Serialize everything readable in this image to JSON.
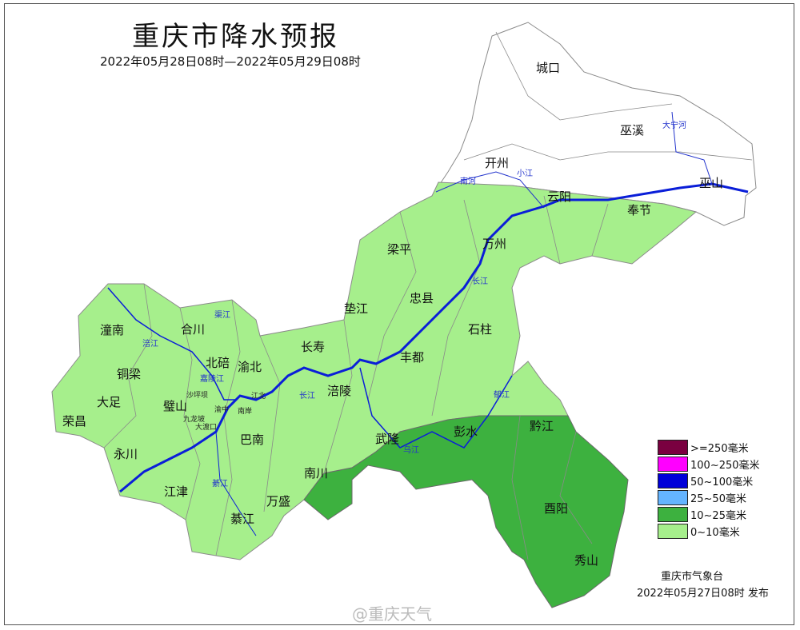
{
  "header": {
    "title": "重庆市降水预报",
    "period": "2022年05月28日08时—2022年05月29日08时"
  },
  "map": {
    "districts_large": [
      {
        "name": "城口"
      },
      {
        "name": "巫溪"
      },
      {
        "name": "开州"
      },
      {
        "name": "云阳"
      },
      {
        "name": "巫山"
      },
      {
        "name": "奉节"
      },
      {
        "name": "梁平"
      },
      {
        "name": "万州"
      },
      {
        "name": "忠县"
      },
      {
        "name": "垫江"
      },
      {
        "name": "石柱"
      },
      {
        "name": "长寿"
      },
      {
        "name": "丰都"
      },
      {
        "name": "涪陵"
      },
      {
        "name": "潼南"
      },
      {
        "name": "合川"
      },
      {
        "name": "北碚"
      },
      {
        "name": "渝北"
      },
      {
        "name": "铜梁"
      },
      {
        "name": "大足"
      },
      {
        "name": "璧山"
      },
      {
        "name": "荣昌"
      },
      {
        "name": "永川"
      },
      {
        "name": "江津"
      },
      {
        "name": "巴南"
      },
      {
        "name": "南川"
      },
      {
        "name": "武隆"
      },
      {
        "name": "彭水"
      },
      {
        "name": "黔江"
      },
      {
        "name": "酉阳"
      },
      {
        "name": "秀山"
      },
      {
        "name": "綦江"
      },
      {
        "name": "万盛"
      }
    ],
    "districts_small": [
      {
        "name": "沙坪坝"
      },
      {
        "name": "江北"
      },
      {
        "name": "渝中"
      },
      {
        "name": "南岸"
      },
      {
        "name": "九龙坡"
      },
      {
        "name": "大渡口"
      }
    ],
    "rivers": [
      {
        "name": "大宁河"
      },
      {
        "name": "南河"
      },
      {
        "name": "小江"
      },
      {
        "name": "长江"
      },
      {
        "name": "渠江"
      },
      {
        "name": "涪江"
      },
      {
        "name": "嘉陵江"
      },
      {
        "name": "长江"
      },
      {
        "name": "乌江"
      },
      {
        "name": "郁江"
      },
      {
        "name": "綦江"
      },
      {
        "name": "长江"
      }
    ],
    "colors": {
      "no_rain": "#ffffff",
      "light": "#a6ef8c",
      "moderate": "#3db13f",
      "river": "#0a1ed8",
      "border": "#8a8a8a"
    }
  },
  "legend": [
    {
      "label": ">=250毫米",
      "color": "#7a0040"
    },
    {
      "label": "100~250毫米",
      "color": "#ff00ff"
    },
    {
      "label": "50~100毫米",
      "color": "#0000d8"
    },
    {
      "label": "25~50毫米",
      "color": "#64b4ff"
    },
    {
      "label": "10~25毫米",
      "color": "#3db13f"
    },
    {
      "label": "0~10毫米",
      "color": "#a6ef8c"
    }
  ],
  "footer": {
    "issuer": "重庆市气象台",
    "issued": "2022年05月27日08时  发布",
    "watermark": "@重庆天气"
  }
}
